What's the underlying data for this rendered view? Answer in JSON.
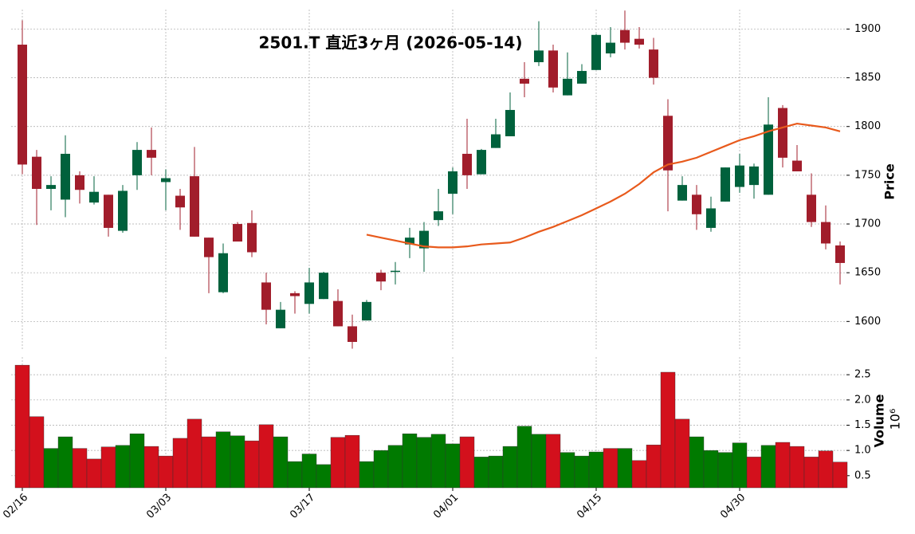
{
  "chart_data": {
    "type": "candlestick",
    "title": "2501.T  直近3ヶ月  (2026-05-14)",
    "categories": [
      "02/16",
      null,
      null,
      null,
      null,
      null,
      null,
      null,
      null,
      null,
      "03/03",
      null,
      null,
      null,
      null,
      null,
      null,
      null,
      null,
      null,
      "03/17",
      null,
      null,
      null,
      null,
      null,
      null,
      null,
      null,
      null,
      "04/01",
      null,
      null,
      null,
      null,
      null,
      null,
      null,
      null,
      null,
      "04/15",
      null,
      null,
      null,
      null,
      null,
      null,
      null,
      null,
      null,
      "04/30",
      null,
      null,
      null,
      null,
      null,
      null,
      null
    ],
    "open": [
      1884,
      1769,
      1736,
      1725,
      1750,
      1722,
      1730,
      1693,
      1750,
      1776,
      1743,
      1729,
      1749,
      1686,
      1630,
      1700,
      1701,
      1640,
      1593,
      1629,
      1618,
      1623,
      1621,
      1595,
      1601,
      1650,
      1651,
      1679,
      1675,
      1704,
      1731,
      1772,
      1751,
      1778,
      1790,
      1849,
      1866,
      1878,
      1832,
      1844,
      1858,
      1875,
      1899,
      1890,
      1879,
      1811,
      1724,
      1730,
      1696,
      1723,
      1738,
      1740,
      1730,
      1819,
      1765,
      1730,
      1702,
      1678
    ],
    "high": [
      1909,
      1776,
      1749,
      1791,
      1754,
      1749,
      1730,
      1740,
      1784,
      1799,
      1756,
      1736,
      1779,
      1686,
      1680,
      1702,
      1714,
      1650,
      1620,
      1631,
      1655,
      1651,
      1633,
      1607,
      1622,
      1653,
      1661,
      1696,
      1702,
      1736,
      1758,
      1808,
      1777,
      1808,
      1835,
      1866,
      1908,
      1884,
      1876,
      1864,
      1895,
      1902,
      1919,
      1902,
      1891,
      1828,
      1749,
      1740,
      1728,
      1758,
      1772,
      1762,
      1830,
      1822,
      1781,
      1752,
      1719,
      1682
    ],
    "low": [
      1751,
      1699,
      1714,
      1707,
      1721,
      1720,
      1687,
      1691,
      1735,
      1750,
      1714,
      1694,
      1687,
      1629,
      1629,
      1682,
      1666,
      1597,
      1593,
      1608,
      1608,
      1623,
      1595,
      1572,
      1601,
      1632,
      1638,
      1665,
      1651,
      1698,
      1710,
      1736,
      1751,
      1778,
      1790,
      1830,
      1862,
      1835,
      1832,
      1844,
      1858,
      1871,
      1879,
      1880,
      1843,
      1713,
      1724,
      1694,
      1692,
      1723,
      1732,
      1726,
      1730,
      1758,
      1754,
      1697,
      1674,
      1638
    ],
    "close": [
      1761,
      1736,
      1740,
      1772,
      1735,
      1733,
      1696,
      1734,
      1776,
      1768,
      1747,
      1717,
      1687,
      1666,
      1670,
      1682,
      1671,
      1612,
      1612,
      1626,
      1640,
      1650,
      1595,
      1579,
      1620,
      1641,
      1652,
      1686,
      1693,
      1713,
      1754,
      1750,
      1776,
      1792,
      1817,
      1844,
      1878,
      1840,
      1849,
      1857,
      1894,
      1886,
      1886,
      1884,
      1850,
      1755,
      1740,
      1710,
      1716,
      1758,
      1760,
      1759,
      1802,
      1768,
      1754,
      1702,
      1680,
      1660
    ],
    "up_color": "#00613c",
    "down_color": "#a11d2b",
    "ma": {
      "color": "#e85a1c",
      "values": [
        null,
        null,
        null,
        null,
        null,
        null,
        null,
        null,
        null,
        null,
        null,
        null,
        null,
        null,
        null,
        null,
        null,
        null,
        null,
        null,
        null,
        null,
        null,
        null,
        1689,
        1686,
        1683,
        1680,
        1677,
        1676,
        1676,
        1677,
        1679,
        1680,
        1681,
        1686,
        1692,
        1697,
        1703,
        1709,
        1716,
        1723,
        1731,
        1741,
        1753,
        1761,
        1764,
        1768,
        1774,
        1780,
        1786,
        1790,
        1795,
        1799,
        1803,
        1801,
        1799,
        1795
      ]
    },
    "ylim": [
      1570,
      1920
    ],
    "yticks": [
      1600,
      1650,
      1700,
      1750,
      1800,
      1850,
      1900
    ],
    "ylabel": "Price",
    "grid": true,
    "volume": {
      "values": [
        2.69,
        1.67,
        1.04,
        1.27,
        1.04,
        0.83,
        1.07,
        1.1,
        1.33,
        1.08,
        0.89,
        1.24,
        1.62,
        1.27,
        1.37,
        1.29,
        1.19,
        1.51,
        1.27,
        0.78,
        0.93,
        0.72,
        1.26,
        1.3,
        0.78,
        1.0,
        1.1,
        1.33,
        1.26,
        1.32,
        1.13,
        1.27,
        0.87,
        0.89,
        1.08,
        1.48,
        1.32,
        1.32,
        0.96,
        0.89,
        0.97,
        1.04,
        1.04,
        0.8,
        1.11,
        2.55,
        1.62,
        1.27,
        1.0,
        0.96,
        1.15,
        0.87,
        1.1,
        1.16,
        1.08,
        0.87,
        0.99,
        0.77
      ],
      "colors": [
        "#d3101c",
        "#d3101c",
        "#007a00",
        "#007a00",
        "#d3101c",
        "#d3101c",
        "#d3101c",
        "#007a00",
        "#007a00",
        "#d3101c",
        "#d3101c",
        "#d3101c",
        "#d3101c",
        "#d3101c",
        "#007a00",
        "#007a00",
        "#d3101c",
        "#d3101c",
        "#007a00",
        "#007a00",
        "#007a00",
        "#007a00",
        "#d3101c",
        "#d3101c",
        "#007a00",
        "#007a00",
        "#007a00",
        "#007a00",
        "#007a00",
        "#007a00",
        "#007a00",
        "#d3101c",
        "#007a00",
        "#007a00",
        "#007a00",
        "#007a00",
        "#007a00",
        "#d3101c",
        "#007a00",
        "#007a00",
        "#007a00",
        "#d3101c",
        "#007a00",
        "#d3101c",
        "#d3101c",
        "#d3101c",
        "#d3101c",
        "#007a00",
        "#007a00",
        "#007a00",
        "#007a00",
        "#d3101c",
        "#007a00",
        "#d3101c",
        "#d3101c",
        "#d3101c",
        "#d3101c",
        "#d3101c"
      ],
      "ylim": [
        0.26,
        2.85
      ],
      "yticks": [
        0.5,
        {
          "value": 1,
          "label": "1.0"
        },
        1.5,
        {
          "value": 2,
          "label": "2.0"
        },
        2.5
      ],
      "ylabel": "Volume",
      "scale_label": "10⁶"
    }
  }
}
